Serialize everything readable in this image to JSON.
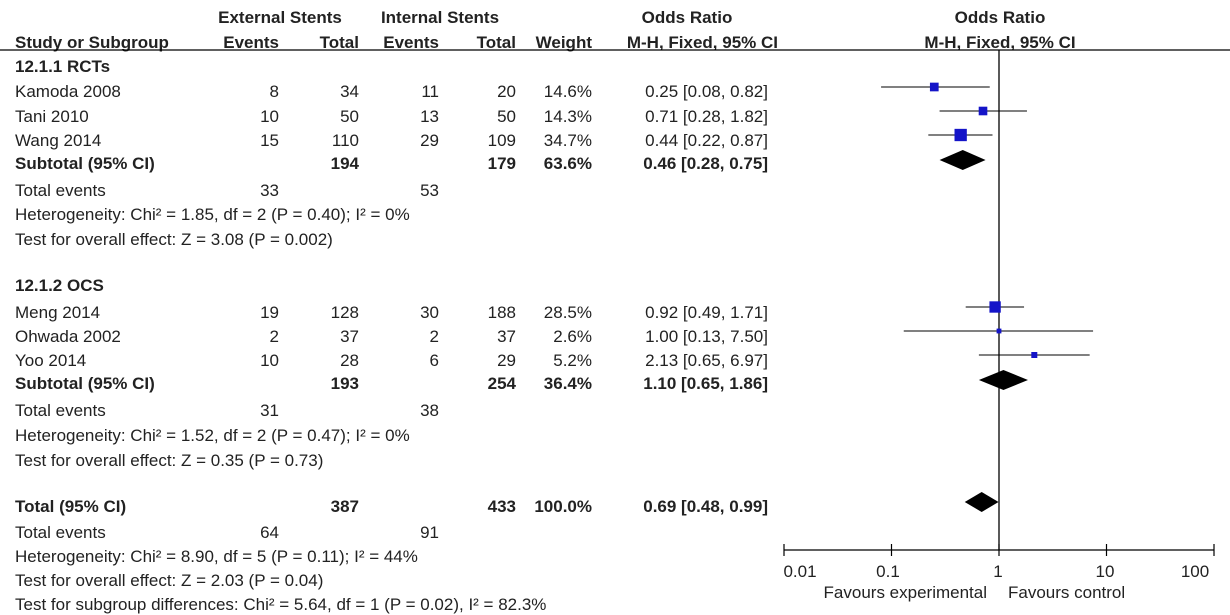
{
  "header": {
    "group_exp": "External Stents",
    "group_ctl": "Internal Stents",
    "or_title": "Odds Ratio",
    "plot_title": "Odds Ratio",
    "col_study": "Study or Subgroup",
    "col_events_exp": "Events",
    "col_total_exp": "Total",
    "col_events_ctl": "Events",
    "col_total_ctl": "Total",
    "col_weight": "Weight",
    "col_method": "M-H, Fixed, 95% CI",
    "plot_method": "M-H, Fixed, 95% CI"
  },
  "subgroups": [
    {
      "heading": "12.1.1 RCTs",
      "studies": [
        {
          "name": "Kamoda 2008",
          "e_events": "8",
          "e_total": "34",
          "c_events": "11",
          "c_total": "20",
          "weight": "14.6%",
          "ci": "0.25 [0.08, 0.82]"
        },
        {
          "name": "Tani 2010",
          "e_events": "10",
          "e_total": "50",
          "c_events": "13",
          "c_total": "50",
          "weight": "14.3%",
          "ci": "0.71 [0.28, 1.82]"
        },
        {
          "name": "Wang 2014",
          "e_events": "15",
          "e_total": "110",
          "c_events": "29",
          "c_total": "109",
          "weight": "34.7%",
          "ci": "0.44 [0.22, 0.87]"
        }
      ],
      "subtotal": {
        "label": "Subtotal (95% CI)",
        "e_total": "194",
        "c_total": "179",
        "weight": "63.6%",
        "ci": "0.46 [0.28, 0.75]"
      },
      "events": {
        "label": "Total events",
        "e": "33",
        "c": "53"
      },
      "heterogeneity": "Heterogeneity: Chi² = 1.85, df = 2 (P = 0.40); I² = 0%",
      "overall": "Test for overall effect: Z = 3.08 (P = 0.002)"
    },
    {
      "heading": "12.1.2 OCS",
      "studies": [
        {
          "name": "Meng 2014",
          "e_events": "19",
          "e_total": "128",
          "c_events": "30",
          "c_total": "188",
          "weight": "28.5%",
          "ci": "0.92 [0.49, 1.71]"
        },
        {
          "name": "Ohwada 2002",
          "e_events": "2",
          "e_total": "37",
          "c_events": "2",
          "c_total": "37",
          "weight": "2.6%",
          "ci": "1.00 [0.13, 7.50]"
        },
        {
          "name": "Yoo 2014",
          "e_events": "10",
          "e_total": "28",
          "c_events": "6",
          "c_total": "29",
          "weight": "5.2%",
          "ci": "2.13 [0.65, 6.97]"
        }
      ],
      "subtotal": {
        "label": "Subtotal (95% CI)",
        "e_total": "193",
        "c_total": "254",
        "weight": "36.4%",
        "ci": "1.10 [0.65, 1.86]"
      },
      "events": {
        "label": "Total events",
        "e": "31",
        "c": "38"
      },
      "heterogeneity": "Heterogeneity: Chi² = 1.52, df = 2 (P = 0.47); I² = 0%",
      "overall": "Test for overall effect: Z = 0.35 (P = 0.73)"
    }
  ],
  "total": {
    "label": "Total (95% CI)",
    "e_total": "387",
    "c_total": "433",
    "weight": "100.0%",
    "ci": "0.69 [0.48, 0.99]",
    "events": {
      "label": "Total events",
      "e": "64",
      "c": "91"
    },
    "heterogeneity": "Heterogeneity: Chi² = 8.90, df = 5 (P = 0.11); I² = 44%",
    "overall": "Test for overall effect: Z = 2.03 (P = 0.04)",
    "subgroup_diff": "Test for subgroup differences: Chi² = 5.64, df = 1 (P = 0.02), I² = 82.3%"
  },
  "axis": {
    "ticks": [
      "0.01",
      "0.1",
      "1",
      "10",
      "100"
    ],
    "favours_left": "Favours experimental",
    "favours_right": "Favours control"
  },
  "colors": {
    "marker": "#1414c8",
    "diamond": "#000000",
    "line": "#000000"
  },
  "chart_data": {
    "type": "forest",
    "scale": "log",
    "xlim": [
      0.01,
      100
    ],
    "null_line": 1,
    "studies": [
      {
        "name": "Kamoda 2008",
        "or": 0.25,
        "lo": 0.08,
        "hi": 0.82,
        "weight": 14.6
      },
      {
        "name": "Tani 2010",
        "or": 0.71,
        "lo": 0.28,
        "hi": 1.82,
        "weight": 14.3
      },
      {
        "name": "Wang 2014",
        "or": 0.44,
        "lo": 0.22,
        "hi": 0.87,
        "weight": 34.7
      },
      {
        "name": "Meng 2014",
        "or": 0.92,
        "lo": 0.49,
        "hi": 1.71,
        "weight": 28.5
      },
      {
        "name": "Ohwada 2002",
        "or": 1.0,
        "lo": 0.13,
        "hi": 7.5,
        "weight": 2.6
      },
      {
        "name": "Yoo 2014",
        "or": 2.13,
        "lo": 0.65,
        "hi": 6.97,
        "weight": 5.2
      }
    ],
    "pooled": [
      {
        "name": "Subtotal 12.1.1 RCTs",
        "or": 0.46,
        "lo": 0.28,
        "hi": 0.75
      },
      {
        "name": "Subtotal 12.1.2 OCS",
        "or": 1.1,
        "lo": 0.65,
        "hi": 1.86
      },
      {
        "name": "Total",
        "or": 0.69,
        "lo": 0.48,
        "hi": 0.99
      }
    ]
  }
}
